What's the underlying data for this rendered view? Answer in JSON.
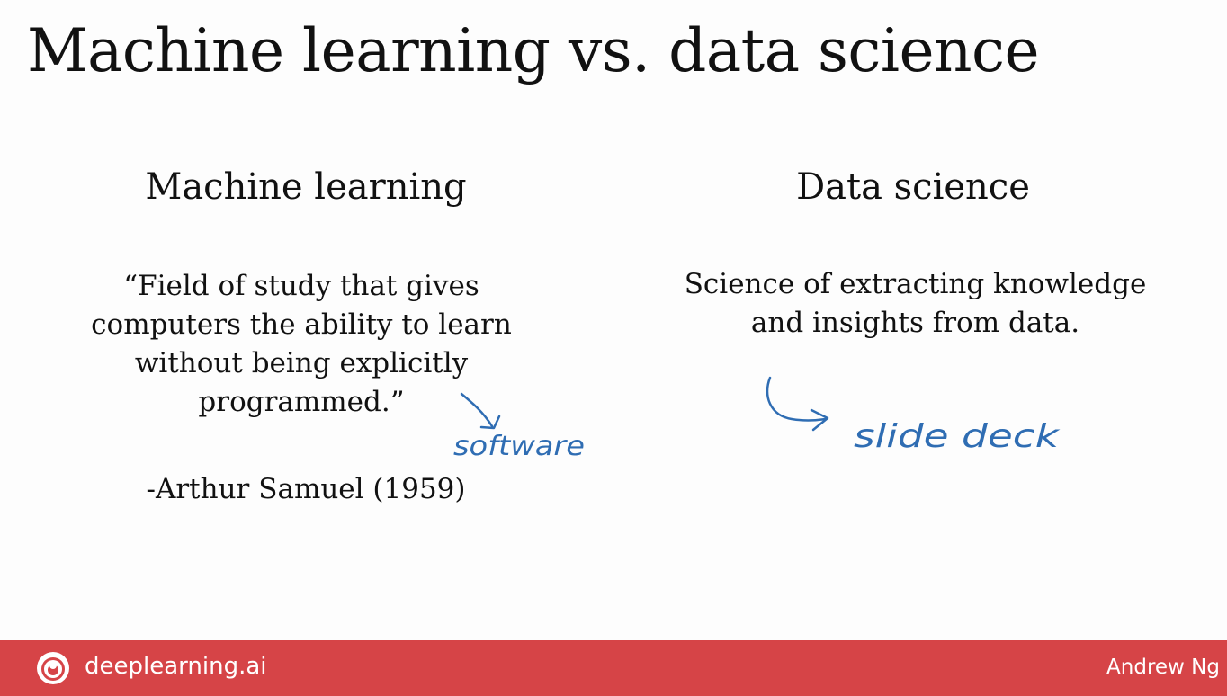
{
  "slide": {
    "title": "Machine learning vs. data science",
    "left_column": {
      "heading": "Machine learning",
      "quote_lines": [
        "“Field of study that gives",
        "computers the ability to learn",
        "without being explicitly",
        "programmed.”"
      ],
      "attribution": "-Arthur Samuel (1959)",
      "annotation": "software"
    },
    "right_column": {
      "heading": "Data science",
      "definition_lines": [
        "Science of extracting knowledge",
        "and insights from data."
      ],
      "annotation": "slide deck"
    }
  },
  "footer": {
    "brand": "deeplearning.ai",
    "author": "Andrew Ng",
    "background_color": "#d64447",
    "logo_icon": "deeplearning-logo-icon"
  },
  "annotation_color": "#2f6db3"
}
